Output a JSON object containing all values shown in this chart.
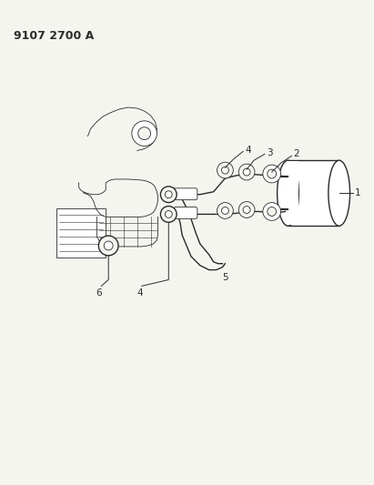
{
  "title_text": "9107 2700 A",
  "bg_color": "#f5f5f0",
  "line_color": "#2a2a2a",
  "label_color": "#2a2a2a",
  "figsize": [
    4.11,
    5.33
  ],
  "dpi": 100,
  "label_fontsize": 7.5
}
